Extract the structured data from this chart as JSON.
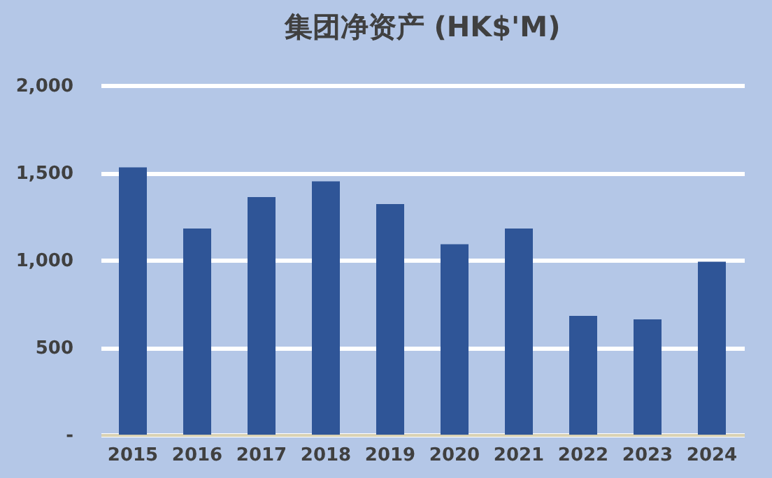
{
  "chart_data": {
    "type": "bar",
    "title": "集团净资产 (HK$'M)",
    "categories": [
      "2015",
      "2016",
      "2017",
      "2018",
      "2019",
      "2020",
      "2021",
      "2022",
      "2023",
      "2024"
    ],
    "values": [
      1530,
      1180,
      1360,
      1450,
      1320,
      1090,
      1180,
      680,
      660,
      990
    ],
    "color": "#2f5597",
    "ylim": [
      0,
      2000
    ],
    "yticks": [
      {
        "value": 0,
        "label": "-"
      },
      500,
      {
        "value": 1000,
        "label": "1,000"
      },
      {
        "value": 1500,
        "label": "1,500"
      },
      {
        "value": 2000,
        "label": "2,000"
      }
    ],
    "grid": "y"
  }
}
